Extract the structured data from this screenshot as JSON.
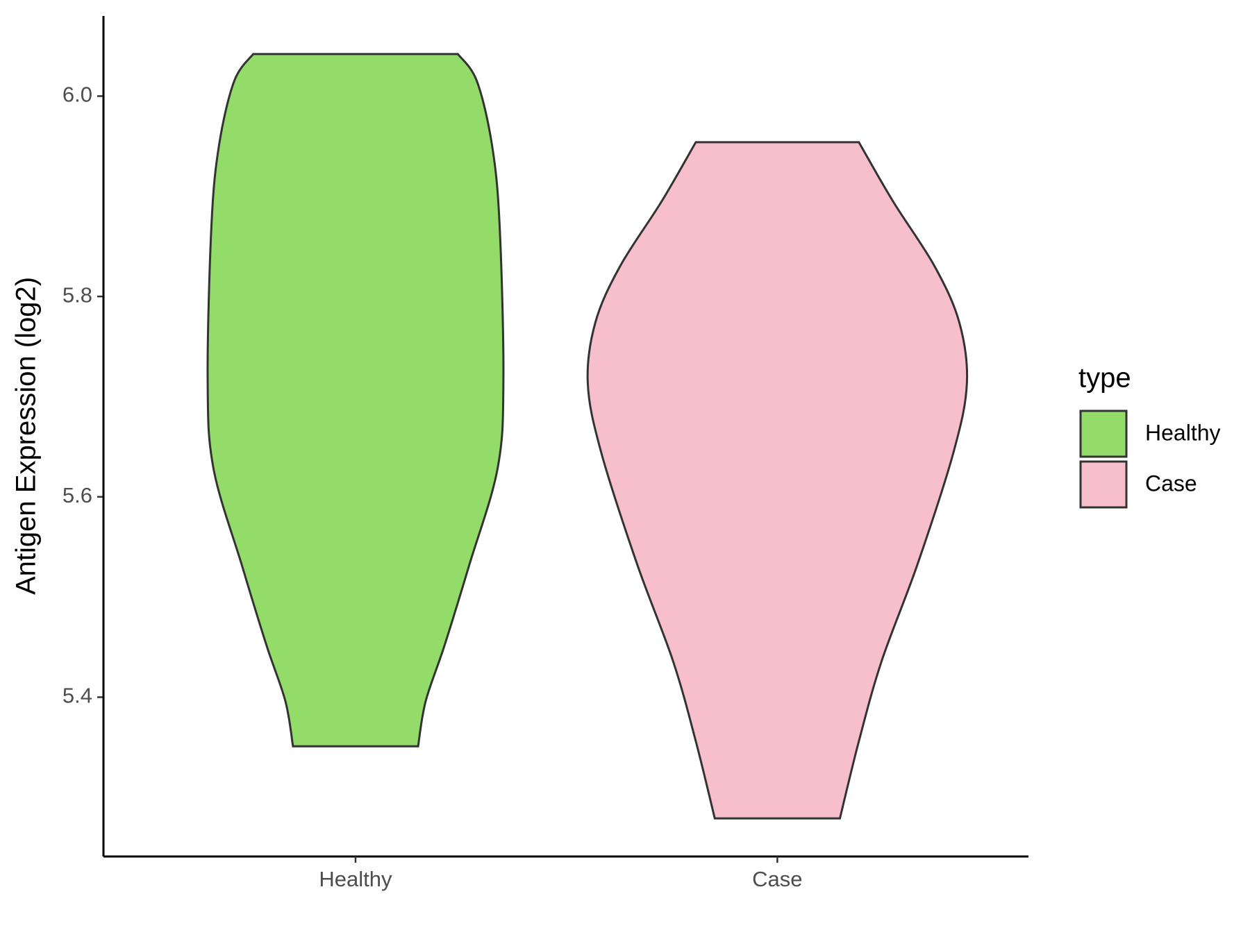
{
  "chart_data": {
    "type": "violin",
    "ylabel": "Antigen Expression (log2)",
    "categories": [
      "Healthy",
      "Case"
    ],
    "ylim": [
      5.241,
      6.08
    ],
    "yticks": [
      5.4,
      5.6,
      5.8,
      {
        "value": 6,
        "label": "6.0"
      }
    ],
    "legend_title": "type",
    "legend": "right",
    "series": [
      {
        "name": "Healthy",
        "color": "#93dc6a",
        "y": [
          6.042,
          6.015,
          5.951,
          5.871,
          5.718,
          5.629,
          5.532,
          5.452,
          5.396,
          5.351
        ],
        "density": [
          0.54,
          0.64,
          0.72,
          0.76,
          0.78,
          0.75,
          0.6,
          0.47,
          0.37,
          0.33
        ]
      },
      {
        "name": "Case",
        "color": "#f7bfcb",
        "y": [
          5.954,
          5.895,
          5.83,
          5.774,
          5.714,
          5.645,
          5.533,
          5.436,
          5.356,
          5.279
        ],
        "density": [
          0.43,
          0.61,
          0.83,
          0.96,
          1.0,
          0.93,
          0.74,
          0.55,
          0.43,
          0.33
        ]
      }
    ]
  }
}
